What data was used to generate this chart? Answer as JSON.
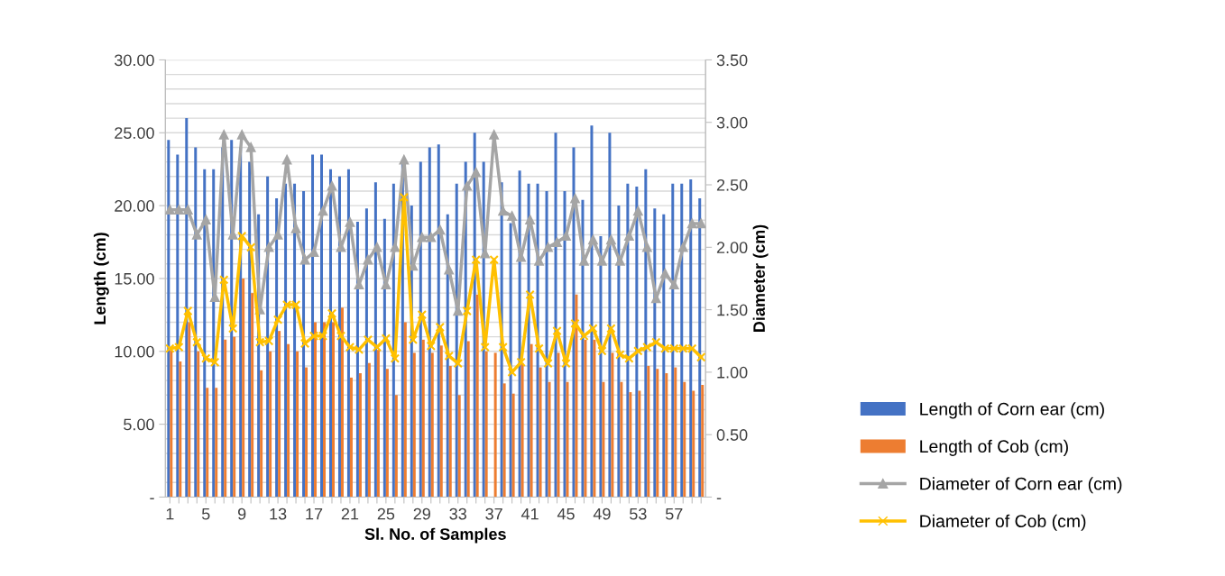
{
  "chart_data": {
    "type": "bar",
    "xlabel": "Sl. No. of Samples",
    "ylabel": "Length (cm)",
    "y2label": "Diameter (cm)",
    "categories": [
      "1",
      null,
      null,
      null,
      "5",
      null,
      null,
      null,
      "9",
      null,
      null,
      null,
      "13",
      null,
      null,
      null,
      "17",
      null,
      null,
      null,
      "21",
      null,
      null,
      null,
      "25",
      null,
      null,
      null,
      "29",
      null,
      null,
      null,
      "33",
      null,
      null,
      null,
      "37",
      null,
      null,
      null,
      "41",
      null,
      null,
      null,
      "45",
      null,
      null,
      null,
      "49",
      null,
      null,
      null,
      "53",
      null,
      null,
      null,
      "57",
      null,
      null,
      null
    ],
    "ylim": [
      0,
      30
    ],
    "yticks": [
      {
        "value": 0,
        "label": "-"
      },
      {
        "value": 5,
        "label": "5.00"
      },
      {
        "value": 10,
        "label": "10.00"
      },
      {
        "value": 15,
        "label": "15.00"
      },
      {
        "value": 20,
        "label": "20.00"
      },
      {
        "value": 25,
        "label": "25.00"
      },
      {
        "value": 30,
        "label": "30.00"
      }
    ],
    "y2lim": [
      0,
      3.5
    ],
    "y2ticks": [
      {
        "value": 0,
        "label": "-"
      },
      {
        "value": 0.5,
        "label": "0.50"
      },
      {
        "value": 1,
        "label": "1.00"
      },
      {
        "value": 1.5,
        "label": "1.50"
      },
      {
        "value": 2,
        "label": "2.00"
      },
      {
        "value": 2.5,
        "label": "2.50"
      },
      {
        "value": 3,
        "label": "3.00"
      },
      {
        "value": 3.5,
        "label": "3.50"
      }
    ],
    "grid": "y",
    "legend": "right",
    "series": [
      {
        "name": "Length of Corn ear (cm)",
        "color": "#4472c4",
        "values": [
          24.5,
          23.5,
          26.0,
          24.0,
          22.5,
          22.5,
          24.0,
          24.5,
          24.0,
          23.0,
          19.4,
          22.0,
          20.5,
          21.5,
          21.5,
          21.0,
          23.5,
          23.5,
          22.5,
          22.0,
          22.5,
          18.9,
          19.8,
          21.6,
          19.1,
          21.5,
          23.0,
          20.0,
          23.0,
          24.0,
          24.2,
          19.4,
          21.5,
          23.0,
          25.0,
          23.0,
          null,
          21.6,
          18.8,
          22.4,
          21.5,
          21.5,
          21.0,
          25.0,
          21.0,
          24.0,
          20.4,
          25.5,
          17.9,
          25.0,
          20.0,
          21.5,
          21.3,
          22.5,
          19.8,
          19.4,
          21.5,
          21.5,
          21.8,
          20.5
        ]
      },
      {
        "name": "Length of Cob (cm)",
        "color": "#ed7d31",
        "values": [
          10.1,
          9.3,
          12.0,
          10.0,
          7.5,
          7.5,
          10.8,
          11.0,
          15.0,
          14.0,
          8.7,
          10.0,
          11.4,
          10.5,
          10.0,
          8.9,
          12.0,
          12.0,
          12.0,
          13.0,
          8.2,
          8.5,
          9.2,
          10.1,
          8.8,
          7.0,
          12.0,
          9.9,
          10.8,
          9.9,
          10.4,
          9.0,
          7.0,
          10.7,
          13.9,
          10.0,
          9.9,
          7.8,
          7.1,
          9.2,
          10.5,
          8.9,
          7.9,
          9.9,
          7.9,
          13.9,
          10.8,
          10.8,
          7.9,
          9.9,
          7.9,
          7.2,
          7.3,
          9.0,
          8.8,
          8.5,
          8.9,
          7.9,
          7.3,
          7.7
        ]
      },
      {
        "name": "Diameter of Corn ear (cm)",
        "type": "line",
        "axis": "y2",
        "marker": "triangle",
        "color": "#a5a5a5",
        "values": [
          2.3,
          2.3,
          2.3,
          2.1,
          2.22,
          1.6,
          2.9,
          2.1,
          2.9,
          2.8,
          1.5,
          2.0,
          2.1,
          2.7,
          2.15,
          1.9,
          1.96,
          2.29,
          2.49,
          2.0,
          2.2,
          1.7,
          1.9,
          2.0,
          1.7,
          2.0,
          2.7,
          1.85,
          2.08,
          2.08,
          2.14,
          1.82,
          1.49,
          2.49,
          2.6,
          1.95,
          2.9,
          2.29,
          2.25,
          1.92,
          2.22,
          1.89,
          2.0,
          2.04,
          2.09,
          2.39,
          1.89,
          2.06,
          1.89,
          2.06,
          1.89,
          2.09,
          2.29,
          2.0,
          1.59,
          1.79,
          1.7,
          2.0,
          2.19,
          2.19
        ]
      },
      {
        "name": "Diameter of Cob (cm)",
        "type": "line",
        "axis": "y2",
        "marker": "cross",
        "color": "#ffc000",
        "values": [
          1.19,
          1.2,
          1.49,
          1.24,
          1.11,
          1.08,
          1.74,
          1.35,
          2.09,
          2.0,
          1.24,
          1.25,
          1.42,
          1.54,
          1.54,
          1.23,
          1.29,
          1.29,
          1.47,
          1.29,
          1.2,
          1.18,
          1.26,
          1.2,
          1.27,
          1.11,
          2.4,
          1.26,
          1.46,
          1.21,
          1.36,
          1.13,
          1.07,
          1.49,
          1.9,
          1.2,
          1.9,
          1.2,
          1.0,
          1.08,
          1.62,
          1.19,
          1.07,
          1.33,
          1.07,
          1.39,
          1.29,
          1.35,
          1.17,
          1.35,
          1.14,
          1.11,
          1.17,
          1.2,
          1.24,
          1.19,
          1.19,
          1.19,
          1.19,
          1.12
        ]
      }
    ]
  }
}
